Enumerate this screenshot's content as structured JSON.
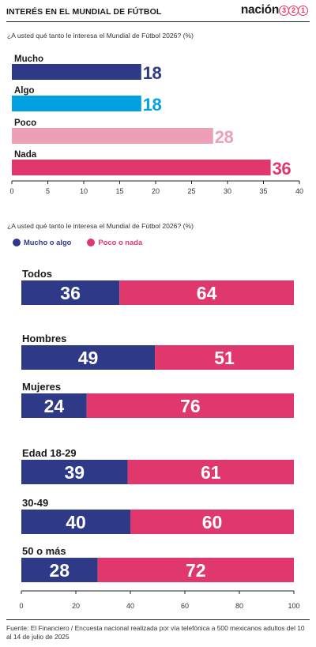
{
  "header": {
    "title": "INTERÉS EN EL MUNDIAL DE FÚTBOL",
    "brand_text": "nación",
    "brand_digits": [
      "3",
      "2",
      "1"
    ]
  },
  "colors": {
    "mucho": "#2e3a87",
    "algo": "#00a0e3",
    "poco": "#eca0b6",
    "nada": "#e0386c",
    "pink": "#e0386c",
    "navy": "#2e3a87"
  },
  "chart_data": [
    {
      "type": "bar",
      "orientation": "horizontal",
      "title": "¿A usted qué tanto le interesa el Mundial de Fútbol 2026? (%)",
      "categories": [
        "Mucho",
        "Algo",
        "Poco",
        "Nada"
      ],
      "values": [
        18,
        18,
        28,
        36
      ],
      "xlim": [
        0,
        40
      ],
      "xticks": [
        "0",
        "5",
        "10",
        "15",
        "20",
        "25",
        "30",
        "35",
        "40"
      ],
      "grid": false
    },
    {
      "type": "bar",
      "orientation": "horizontal",
      "stacked": true,
      "title": "¿A usted qué tanto le interesa el Mundial de Fútbol 2026? (%)",
      "categories": [
        "Todos",
        "Hombres",
        "Mujeres",
        "Edad 18-29",
        "30-49",
        "50 o más"
      ],
      "series": [
        {
          "name": "Mucho o algo",
          "values": [
            36,
            49,
            24,
            39,
            40,
            28
          ]
        },
        {
          "name": "Poco o nada",
          "values": [
            64,
            51,
            76,
            61,
            60,
            72
          ]
        }
      ],
      "xlim": [
        0,
        100
      ],
      "xticks": [
        "0",
        "20",
        "40",
        "60",
        "80",
        "100"
      ],
      "legend": "top-left",
      "grid": false
    }
  ],
  "source": "Fuente: El Financiero / Encuesta nacional realizada por vía telefónica a 500 mexicanos adultos del 10 al 14 de julio de 2025"
}
